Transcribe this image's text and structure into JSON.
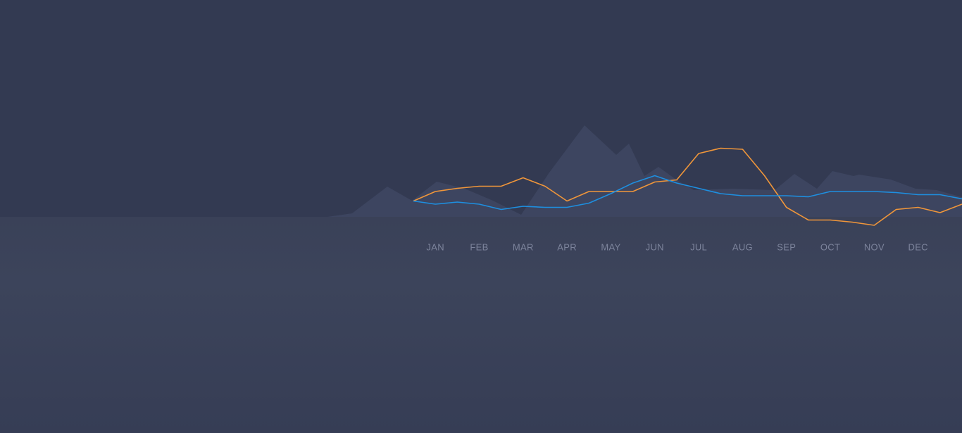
{
  "chart_data": {
    "type": "line",
    "categories": [
      null,
      "JAN",
      null,
      "FEB",
      null,
      "MAR",
      null,
      "APR",
      null,
      "MAY",
      null,
      "JUN",
      null,
      "JUL",
      null,
      "AUG",
      null,
      "SEP",
      null,
      "OCT",
      null,
      "NOV",
      null,
      "DEC",
      null,
      null
    ],
    "ylim": [
      0,
      100
    ],
    "series": [
      {
        "color": "#f0963a",
        "values": [
          23,
          32,
          35,
          37,
          37,
          45,
          37,
          23,
          32,
          32,
          32,
          41,
          43,
          68,
          73,
          72,
          47,
          17,
          5,
          5,
          3,
          0,
          15,
          17,
          12,
          20
        ]
      },
      {
        "color": "#1e8fe0",
        "values": [
          23,
          20,
          22,
          20,
          15,
          18,
          17,
          17,
          21,
          30,
          40,
          47,
          40,
          35,
          30,
          28,
          28,
          28,
          27,
          32,
          32,
          32,
          31,
          29,
          29,
          25
        ]
      }
    ]
  }
}
